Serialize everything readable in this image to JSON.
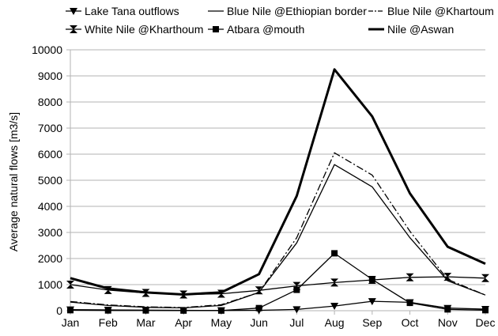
{
  "chart_data": {
    "type": "line",
    "categories": [
      "Jan",
      "Feb",
      "Mar",
      "Apr",
      "May",
      "Jun",
      "Jul",
      "Aug",
      "Sep",
      "Oct",
      "Nov",
      "Dec"
    ],
    "ylabel": "Average natural flows [m3/s]",
    "ylim": [
      0,
      10000
    ],
    "yticks": [
      0,
      1000,
      2000,
      3000,
      4000,
      5000,
      6000,
      7000,
      8000,
      9000,
      10000
    ],
    "grid": "horizontal",
    "legend_position": "top",
    "series": [
      {
        "name": "Lake Tana outflows",
        "marker": "triangle-down",
        "style": "solid",
        "width": 1.3,
        "color": "#000000",
        "values": [
          40,
          30,
          20,
          15,
          10,
          15,
          50,
          180,
          360,
          320,
          100,
          60
        ]
      },
      {
        "name": "Blue Nile @Ethiopian border",
        "marker": "none",
        "style": "solid",
        "width": 1.3,
        "color": "#000000",
        "values": [
          330,
          200,
          130,
          110,
          200,
          700,
          2600,
          5600,
          4750,
          2800,
          1150,
          600
        ]
      },
      {
        "name": "Blue Nile @Khartoum",
        "marker": "none",
        "style": "dashdot",
        "width": 1.3,
        "color": "#000000",
        "values": [
          350,
          220,
          150,
          120,
          230,
          700,
          2800,
          6050,
          5200,
          3050,
          1200,
          600
        ]
      },
      {
        "name": "White Nile @Kharthoum",
        "marker": "hourglass",
        "style": "solid",
        "width": 1.3,
        "color": "#000000",
        "values": [
          1000,
          790,
          680,
          620,
          650,
          780,
          950,
          1080,
          1180,
          1280,
          1300,
          1250
        ]
      },
      {
        "name": "Atbara @mouth",
        "marker": "square",
        "style": "solid",
        "width": 1.3,
        "color": "#000000",
        "values": [
          20,
          10,
          10,
          5,
          5,
          100,
          800,
          2200,
          1200,
          300,
          50,
          20
        ]
      },
      {
        "name": "Nile @Aswan",
        "marker": "none",
        "style": "solid",
        "width": 3,
        "color": "#000000",
        "values": [
          1250,
          850,
          700,
          620,
          700,
          1400,
          4400,
          9250,
          7450,
          4500,
          2450,
          1800
        ]
      }
    ]
  }
}
